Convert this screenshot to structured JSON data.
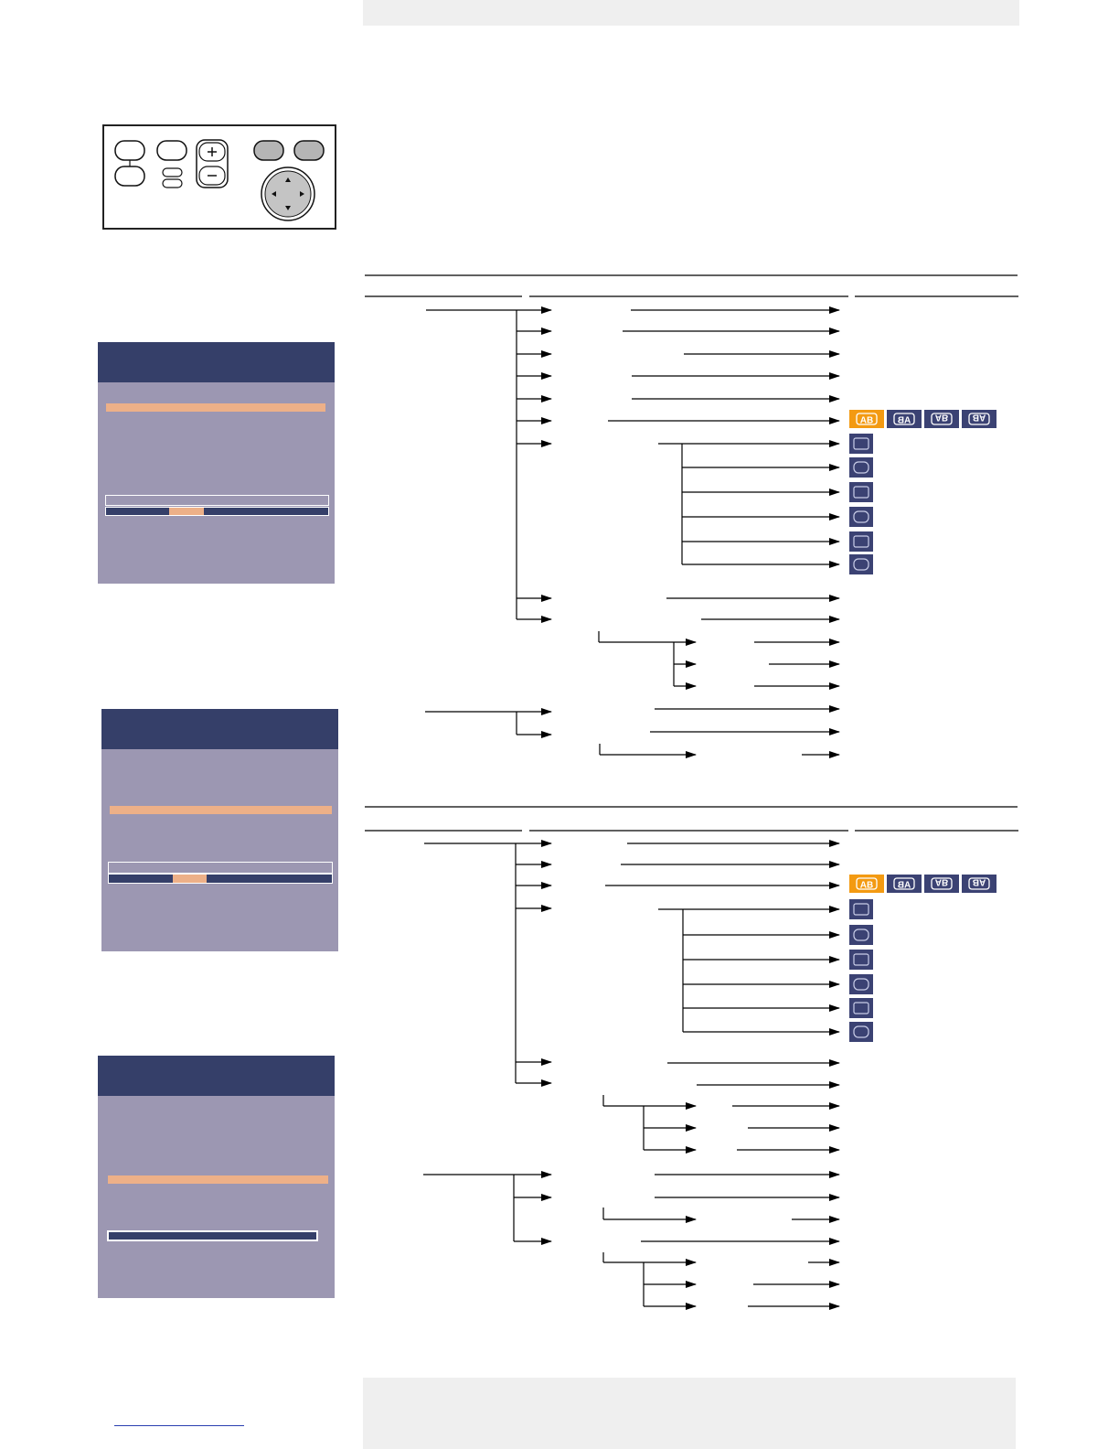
{
  "page": {
    "background": "#ffffff",
    "band_color": "#efefef"
  },
  "remote": {
    "buttons": [
      "button",
      "button",
      "button",
      "button",
      "volume-rocker",
      "button",
      "button",
      "navigation-pad"
    ],
    "icons": [
      "plus-icon",
      "minus-icon",
      "arrow-up-icon",
      "arrow-down-icon",
      "arrow-left-icon",
      "arrow-right-icon"
    ]
  },
  "osd_panels": [
    {
      "name": "osd-panel-1",
      "highlight": "row",
      "slider_position": 0.36
    },
    {
      "name": "osd-panel-2",
      "highlight": "row",
      "slider_position": 0.36
    },
    {
      "name": "osd-panel-3",
      "highlight": "row",
      "slider_position": null
    }
  ],
  "colors": {
    "osd_header": "#353f69",
    "osd_body": "#9c97b2",
    "osd_highlight": "#edb088",
    "icon_selected": "#f39a12",
    "icon_tile": "#3b4273"
  },
  "icons": {
    "mirror_modes": [
      "AB",
      "AB",
      "AB",
      "AB"
    ],
    "keystone_set": [
      "keystone-icon",
      "keystone-icon",
      "keystone-icon",
      "keystone-icon",
      "keystone-icon",
      "keystone-icon"
    ]
  }
}
